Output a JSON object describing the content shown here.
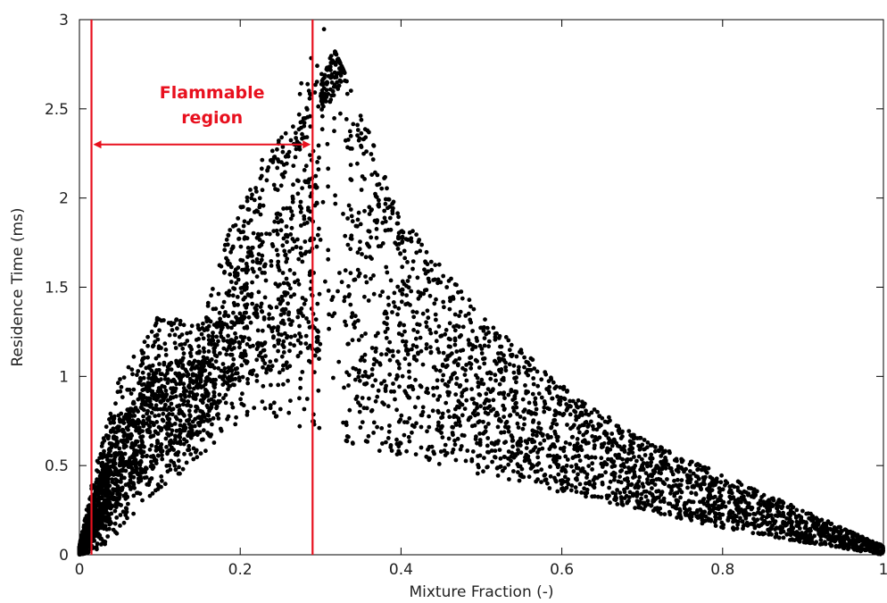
{
  "chart_data": {
    "type": "scatter",
    "title": "",
    "xlabel": "Mixture Fraction (-)",
    "ylabel": "Residence Time (ms)",
    "xlim": [
      0,
      1
    ],
    "ylim": [
      0,
      3
    ],
    "x_ticks": [
      "0",
      "0.2",
      "0.4",
      "0.6",
      "0.8",
      "1"
    ],
    "y_ticks": [
      "0",
      "0.5",
      "1",
      "1.5",
      "2",
      "2.5",
      "3"
    ],
    "grid": false,
    "legend": "none",
    "marker_color": "#000000",
    "annotation_color": "#e8101e",
    "flammable_limits": [
      0.015,
      0.29
    ],
    "annotation": {
      "label_line1": "Flammable",
      "label_line2": "region",
      "arrow_y": 2.3,
      "label_x": 0.165
    },
    "density_envelope": [
      {
        "x": 0.0,
        "ymin": 0.0,
        "ymax": 0.05
      },
      {
        "x": 0.02,
        "ymin": 0.02,
        "ymax": 0.5
      },
      {
        "x": 0.05,
        "ymin": 0.12,
        "ymax": 1.0
      },
      {
        "x": 0.1,
        "ymin": 0.35,
        "ymax": 1.35
      },
      {
        "x": 0.15,
        "ymin": 0.55,
        "ymax": 1.3
      },
      {
        "x": 0.2,
        "ymin": 0.75,
        "ymax": 2.0
      },
      {
        "x": 0.25,
        "ymin": 0.75,
        "ymax": 2.4
      },
      {
        "x": 0.3,
        "ymin": 0.65,
        "ymax": 3.0
      },
      {
        "x": 0.35,
        "ymin": 0.6,
        "ymax": 2.5
      },
      {
        "x": 0.4,
        "ymin": 0.55,
        "ymax": 1.9
      },
      {
        "x": 0.5,
        "ymin": 0.45,
        "ymax": 1.35
      },
      {
        "x": 0.6,
        "ymin": 0.35,
        "ymax": 0.95
      },
      {
        "x": 0.7,
        "ymin": 0.25,
        "ymax": 0.65
      },
      {
        "x": 0.8,
        "ymin": 0.15,
        "ymax": 0.45
      },
      {
        "x": 0.9,
        "ymin": 0.07,
        "ymax": 0.25
      },
      {
        "x": 1.0,
        "ymin": 0.0,
        "ymax": 0.05
      }
    ]
  }
}
